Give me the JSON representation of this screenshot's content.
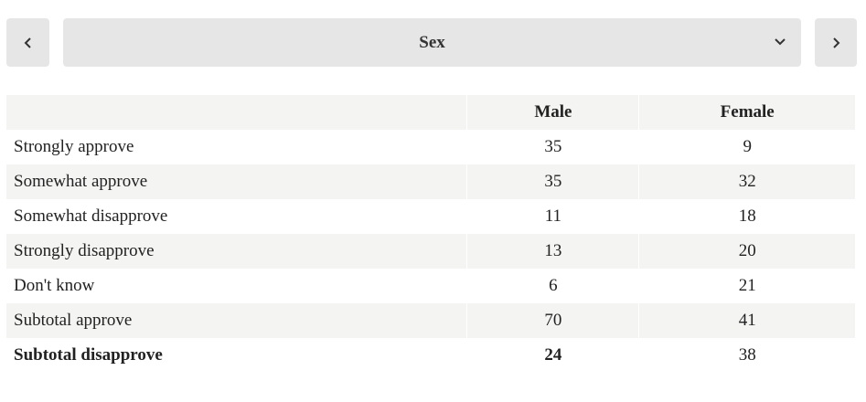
{
  "selector": {
    "label": "Sex"
  },
  "table": {
    "columns": [
      "",
      "Male",
      "Female"
    ],
    "rows": [
      [
        "Strongly approve",
        35,
        9
      ],
      [
        "Somewhat approve",
        35,
        32
      ],
      [
        "Somewhat disapprove",
        11,
        18
      ],
      [
        "Strongly disapprove",
        13,
        20
      ],
      [
        "Don't know",
        6,
        21
      ],
      [
        "Subtotal approve",
        70,
        41
      ],
      [
        "Subtotal disapprove",
        24,
        38
      ]
    ]
  }
}
